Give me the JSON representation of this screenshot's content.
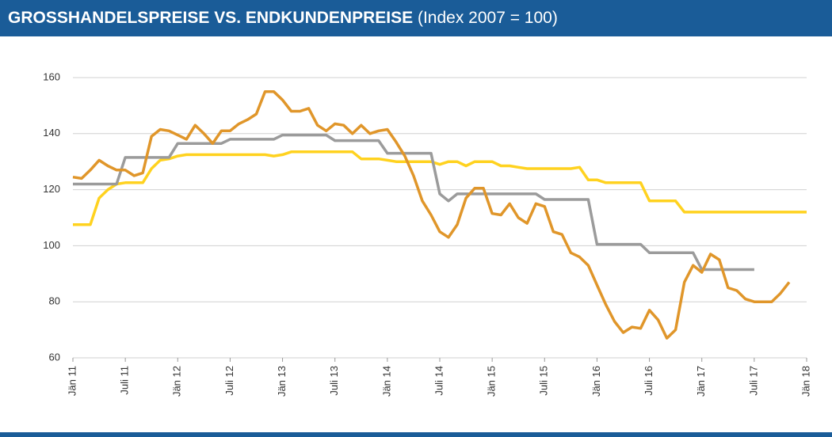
{
  "chart_data": {
    "type": "line",
    "title": "GROSSHANDELSPREISE VS. ENDKUNDENPREISE",
    "subtitle": "(Index 2007 = 100)",
    "categories": [
      "Jän 11",
      null,
      null,
      null,
      null,
      null,
      "Juli 11",
      null,
      null,
      null,
      null,
      null,
      "Jän 12",
      null,
      null,
      null,
      null,
      null,
      "Juli 12",
      null,
      null,
      null,
      null,
      null,
      "Jän 13",
      null,
      null,
      null,
      null,
      null,
      "Juli 13",
      null,
      null,
      null,
      null,
      null,
      "Jän 14",
      null,
      null,
      null,
      null,
      null,
      "Juli 14",
      null,
      null,
      null,
      null,
      null,
      "Jän 15",
      null,
      null,
      null,
      null,
      null,
      "Juli 15",
      null,
      null,
      null,
      null,
      null,
      "Jän 16",
      null,
      null,
      null,
      null,
      null,
      "Juli 16",
      null,
      null,
      null,
      null,
      null,
      "Jän 17",
      null,
      null,
      null,
      null,
      null,
      "Juli 17",
      null,
      null,
      null,
      null,
      null,
      "Jän 18"
    ],
    "series": [
      {
        "color": "#ffd21f",
        "values": [
          107.5,
          107.5,
          107.5,
          117,
          120,
          122,
          122.5,
          122.5,
          122.5,
          127.5,
          130.5,
          131,
          132,
          132.5,
          132.5,
          132.5,
          132.5,
          132.5,
          132.5,
          132.5,
          132.5,
          132.5,
          132.5,
          132,
          132.5,
          133.5,
          133.5,
          133.5,
          133.5,
          133.5,
          133.5,
          133.5,
          133.5,
          131,
          131,
          131,
          130.5,
          130,
          130,
          130,
          130,
          130,
          129,
          130,
          130,
          128.5,
          130,
          130,
          130,
          128.5,
          128.5,
          128,
          127.5,
          127.5,
          127.5,
          127.5,
          127.5,
          127.5,
          128,
          123.5,
          123.5,
          122.5,
          122.5,
          122.5,
          122.5,
          122.5,
          116,
          116,
          116,
          116,
          112,
          112,
          112,
          112,
          112,
          112,
          112,
          112,
          112,
          112,
          112,
          112,
          112,
          112,
          112
        ]
      },
      {
        "color": "#9b9b9b",
        "values": [
          122,
          122,
          122,
          122,
          122,
          122,
          131.5,
          131.5,
          131.5,
          131.5,
          131.5,
          131.5,
          136.5,
          136.5,
          136.5,
          136.5,
          136.5,
          136.5,
          138,
          138,
          138,
          138,
          138,
          138,
          139.5,
          139.5,
          139.5,
          139.5,
          139.5,
          139.5,
          137.5,
          137.5,
          137.5,
          137.5,
          137.5,
          137.5,
          133,
          133,
          133,
          133,
          133,
          133,
          118.5,
          116,
          118.5,
          118.5,
          118.5,
          118.5,
          118.5,
          118.5,
          118.5,
          118.5,
          118.5,
          118.5,
          116.5,
          116.5,
          116.5,
          116.5,
          116.5,
          116.5,
          100.5,
          100.5,
          100.5,
          100.5,
          100.5,
          100.5,
          97.5,
          97.5,
          97.5,
          97.5,
          97.5,
          97.5,
          91.5,
          91.5,
          91.5,
          91.5,
          91.5,
          91.5,
          91.5,
          null,
          null,
          null,
          null,
          null,
          null
        ]
      },
      {
        "color": "#e0962a",
        "values": [
          124.5,
          124,
          127,
          130.5,
          128.5,
          127,
          127,
          125,
          126,
          139,
          141.5,
          141,
          139.5,
          138,
          143,
          140,
          136.5,
          141,
          141,
          143.5,
          145,
          147,
          155,
          155,
          152,
          148,
          148,
          149,
          143,
          141,
          143.5,
          143,
          140,
          143,
          140,
          141,
          141.5,
          137,
          132,
          125,
          116,
          111,
          105,
          103,
          107.5,
          117,
          120.5,
          120.5,
          111.5,
          111,
          115,
          110,
          108,
          115,
          114,
          105,
          104,
          97.5,
          96,
          93,
          86,
          79,
          73,
          69,
          71,
          70.5,
          77,
          73.5,
          67,
          70,
          87,
          93,
          90.5,
          97,
          95,
          85,
          84,
          81,
          80,
          80,
          80,
          83,
          87,
          null,
          null
        ]
      }
    ],
    "ylim": [
      60,
      160
    ],
    "yticks": [
      60,
      80,
      100,
      120,
      140,
      160
    ],
    "grid": true
  }
}
